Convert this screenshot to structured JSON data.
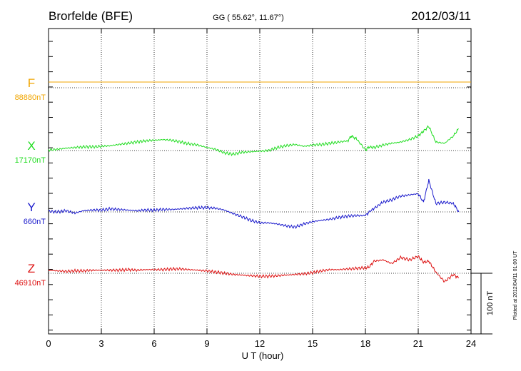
{
  "header": {
    "station": "Brorfelde (BFE)",
    "coords": "GG ( 55.62°,  11.67°)",
    "date": "2012/03/11"
  },
  "footer": {
    "plotted_note": "Plotted at 2012/04/11 01:00 UT"
  },
  "chart_data": {
    "type": "line",
    "title": "Brorfelde (BFE)",
    "xlabel": "U T (hour)",
    "xlim": [
      0,
      24
    ],
    "xticks": [
      0,
      3,
      6,
      9,
      12,
      15,
      18,
      21,
      24
    ],
    "grid": true,
    "scale_bar": {
      "label": "100 nT",
      "value": 100
    },
    "series": [
      {
        "name": "F",
        "baseline_label": "88880nT",
        "color": "#f0a500",
        "x": [
          0,
          24
        ],
        "y": [
          8,
          8
        ]
      },
      {
        "name": "X",
        "baseline_label": "17170nT",
        "color": "#22dd22",
        "x": [
          0,
          0.5,
          1,
          1.5,
          2,
          2.5,
          3,
          3.5,
          4,
          4.5,
          5,
          5.5,
          6,
          6.5,
          7,
          7.5,
          8,
          8.5,
          9,
          9.5,
          10,
          10.5,
          11,
          11.5,
          12,
          12.5,
          13,
          13.5,
          14,
          14.5,
          15,
          15.5,
          16,
          16.5,
          17,
          17.2,
          17.5,
          18,
          18.2,
          18.5,
          19,
          19.5,
          20,
          20.5,
          21,
          21.3,
          21.6,
          22,
          22.5,
          23,
          23.3
        ],
        "y": [
          1,
          2,
          4,
          5,
          6,
          6,
          7,
          8,
          10,
          12,
          14,
          16,
          17,
          18,
          17,
          14,
          11,
          9,
          5,
          2,
          -4,
          -6,
          -3,
          -2,
          -1,
          0,
          5,
          8,
          10,
          7,
          9,
          10,
          12,
          14,
          16,
          24,
          19,
          1,
          6,
          5,
          9,
          12,
          14,
          18,
          24,
          32,
          40,
          14,
          12,
          24,
          36
        ]
      },
      {
        "name": "Y",
        "baseline_label": "660nT",
        "color": "#1a1acc",
        "x": [
          0,
          0.5,
          1,
          1.5,
          2,
          2.5,
          3,
          3.5,
          4,
          4.5,
          5,
          5.5,
          6,
          6.5,
          7,
          7.5,
          8,
          8.5,
          9,
          9.5,
          10,
          10.5,
          11,
          11.5,
          12,
          12.5,
          13,
          13.5,
          14,
          14.5,
          15,
          15.5,
          16,
          16.5,
          17,
          17.5,
          18,
          18.3,
          18.7,
          19,
          19.5,
          20,
          20.5,
          21,
          21.3,
          21.6,
          22,
          22.5,
          23,
          23.3
        ],
        "y": [
          1,
          0,
          2,
          -2,
          2,
          3,
          3,
          5,
          4,
          3,
          2,
          3,
          3,
          4,
          4,
          5,
          6,
          7,
          7,
          6,
          3,
          -3,
          -8,
          -14,
          -18,
          -18,
          -20,
          -23,
          -25,
          -20,
          -16,
          -14,
          -12,
          -9,
          -7,
          -6,
          -6,
          2,
          10,
          16,
          20,
          26,
          28,
          30,
          16,
          52,
          14,
          16,
          14,
          0
        ]
      },
      {
        "name": "Z",
        "baseline_label": "46910nT",
        "color": "#dd1111",
        "x": [
          0,
          0.5,
          1,
          1.5,
          2,
          2.5,
          3,
          3.5,
          4,
          4.5,
          5,
          5.5,
          6,
          6.5,
          7,
          7.5,
          8,
          8.5,
          9,
          9.5,
          10,
          10.5,
          11,
          11.5,
          12,
          12.5,
          13,
          13.5,
          14,
          14.5,
          15,
          15.5,
          16,
          16.5,
          17,
          17.5,
          18,
          18.2,
          18.5,
          19,
          19.5,
          20,
          20.5,
          21,
          21.3,
          21.6,
          22,
          22.5,
          23,
          23.3
        ],
        "y": [
          5,
          4,
          3,
          4,
          4,
          5,
          5,
          5,
          5,
          6,
          5,
          6,
          6,
          6,
          7,
          7,
          6,
          5,
          4,
          2,
          0,
          -2,
          -3,
          -4,
          -5,
          -5,
          -4,
          -3,
          -2,
          -1,
          1,
          4,
          6,
          6,
          7,
          8,
          9,
          10,
          20,
          22,
          16,
          26,
          22,
          28,
          18,
          20,
          2,
          -14,
          -2,
          -8
        ]
      }
    ]
  }
}
